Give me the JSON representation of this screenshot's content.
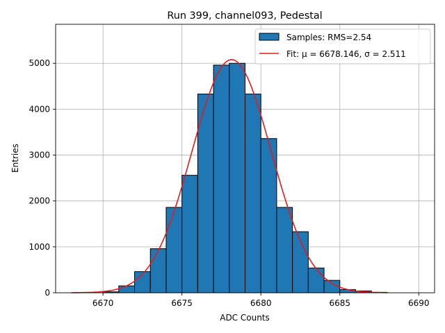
{
  "chart_data": {
    "type": "bar",
    "title": "Run 399, channel093, Pedestal",
    "xlabel": "ADC Counts",
    "ylabel": "Entries",
    "xlim": [
      6667.0,
      6691.0
    ],
    "ylim": [
      0,
      5850
    ],
    "xticks": [
      6670,
      6675,
      6680,
      6685,
      6690
    ],
    "yticks": [
      0,
      1000,
      2000,
      3000,
      4000,
      5000
    ],
    "grid": true,
    "legend_position": "top-right",
    "bin_width": 1,
    "bins": [
      {
        "left": 6670,
        "value": 20
      },
      {
        "left": 6671,
        "value": 150
      },
      {
        "left": 6672,
        "value": 460
      },
      {
        "left": 6673,
        "value": 960
      },
      {
        "left": 6674,
        "value": 1860
      },
      {
        "left": 6675,
        "value": 2560
      },
      {
        "left": 6676,
        "value": 4330
      },
      {
        "left": 6677,
        "value": 4960
      },
      {
        "left": 6678,
        "value": 5000
      },
      {
        "left": 6679,
        "value": 4330
      },
      {
        "left": 6680,
        "value": 3360
      },
      {
        "left": 6681,
        "value": 1860
      },
      {
        "left": 6682,
        "value": 1330
      },
      {
        "left": 6683,
        "value": 540
      },
      {
        "left": 6684,
        "value": 270
      },
      {
        "left": 6685,
        "value": 70
      },
      {
        "left": 6686,
        "value": 40
      },
      {
        "left": 6687,
        "value": 10
      }
    ],
    "fit": {
      "mu": 6678.146,
      "sigma": 2.511,
      "amplitude": 5080,
      "x_range": [
        6668,
        6688
      ]
    },
    "series": [
      {
        "name": "Samples: RMS=2.54",
        "kind": "histogram",
        "color": "#1f77b4"
      },
      {
        "name_prefix": "Fit: ",
        "mu_label": "μ = 6678.146",
        "sigma_label": "σ = 2.511",
        "kind": "line",
        "color": "#e41a1c"
      }
    ]
  }
}
